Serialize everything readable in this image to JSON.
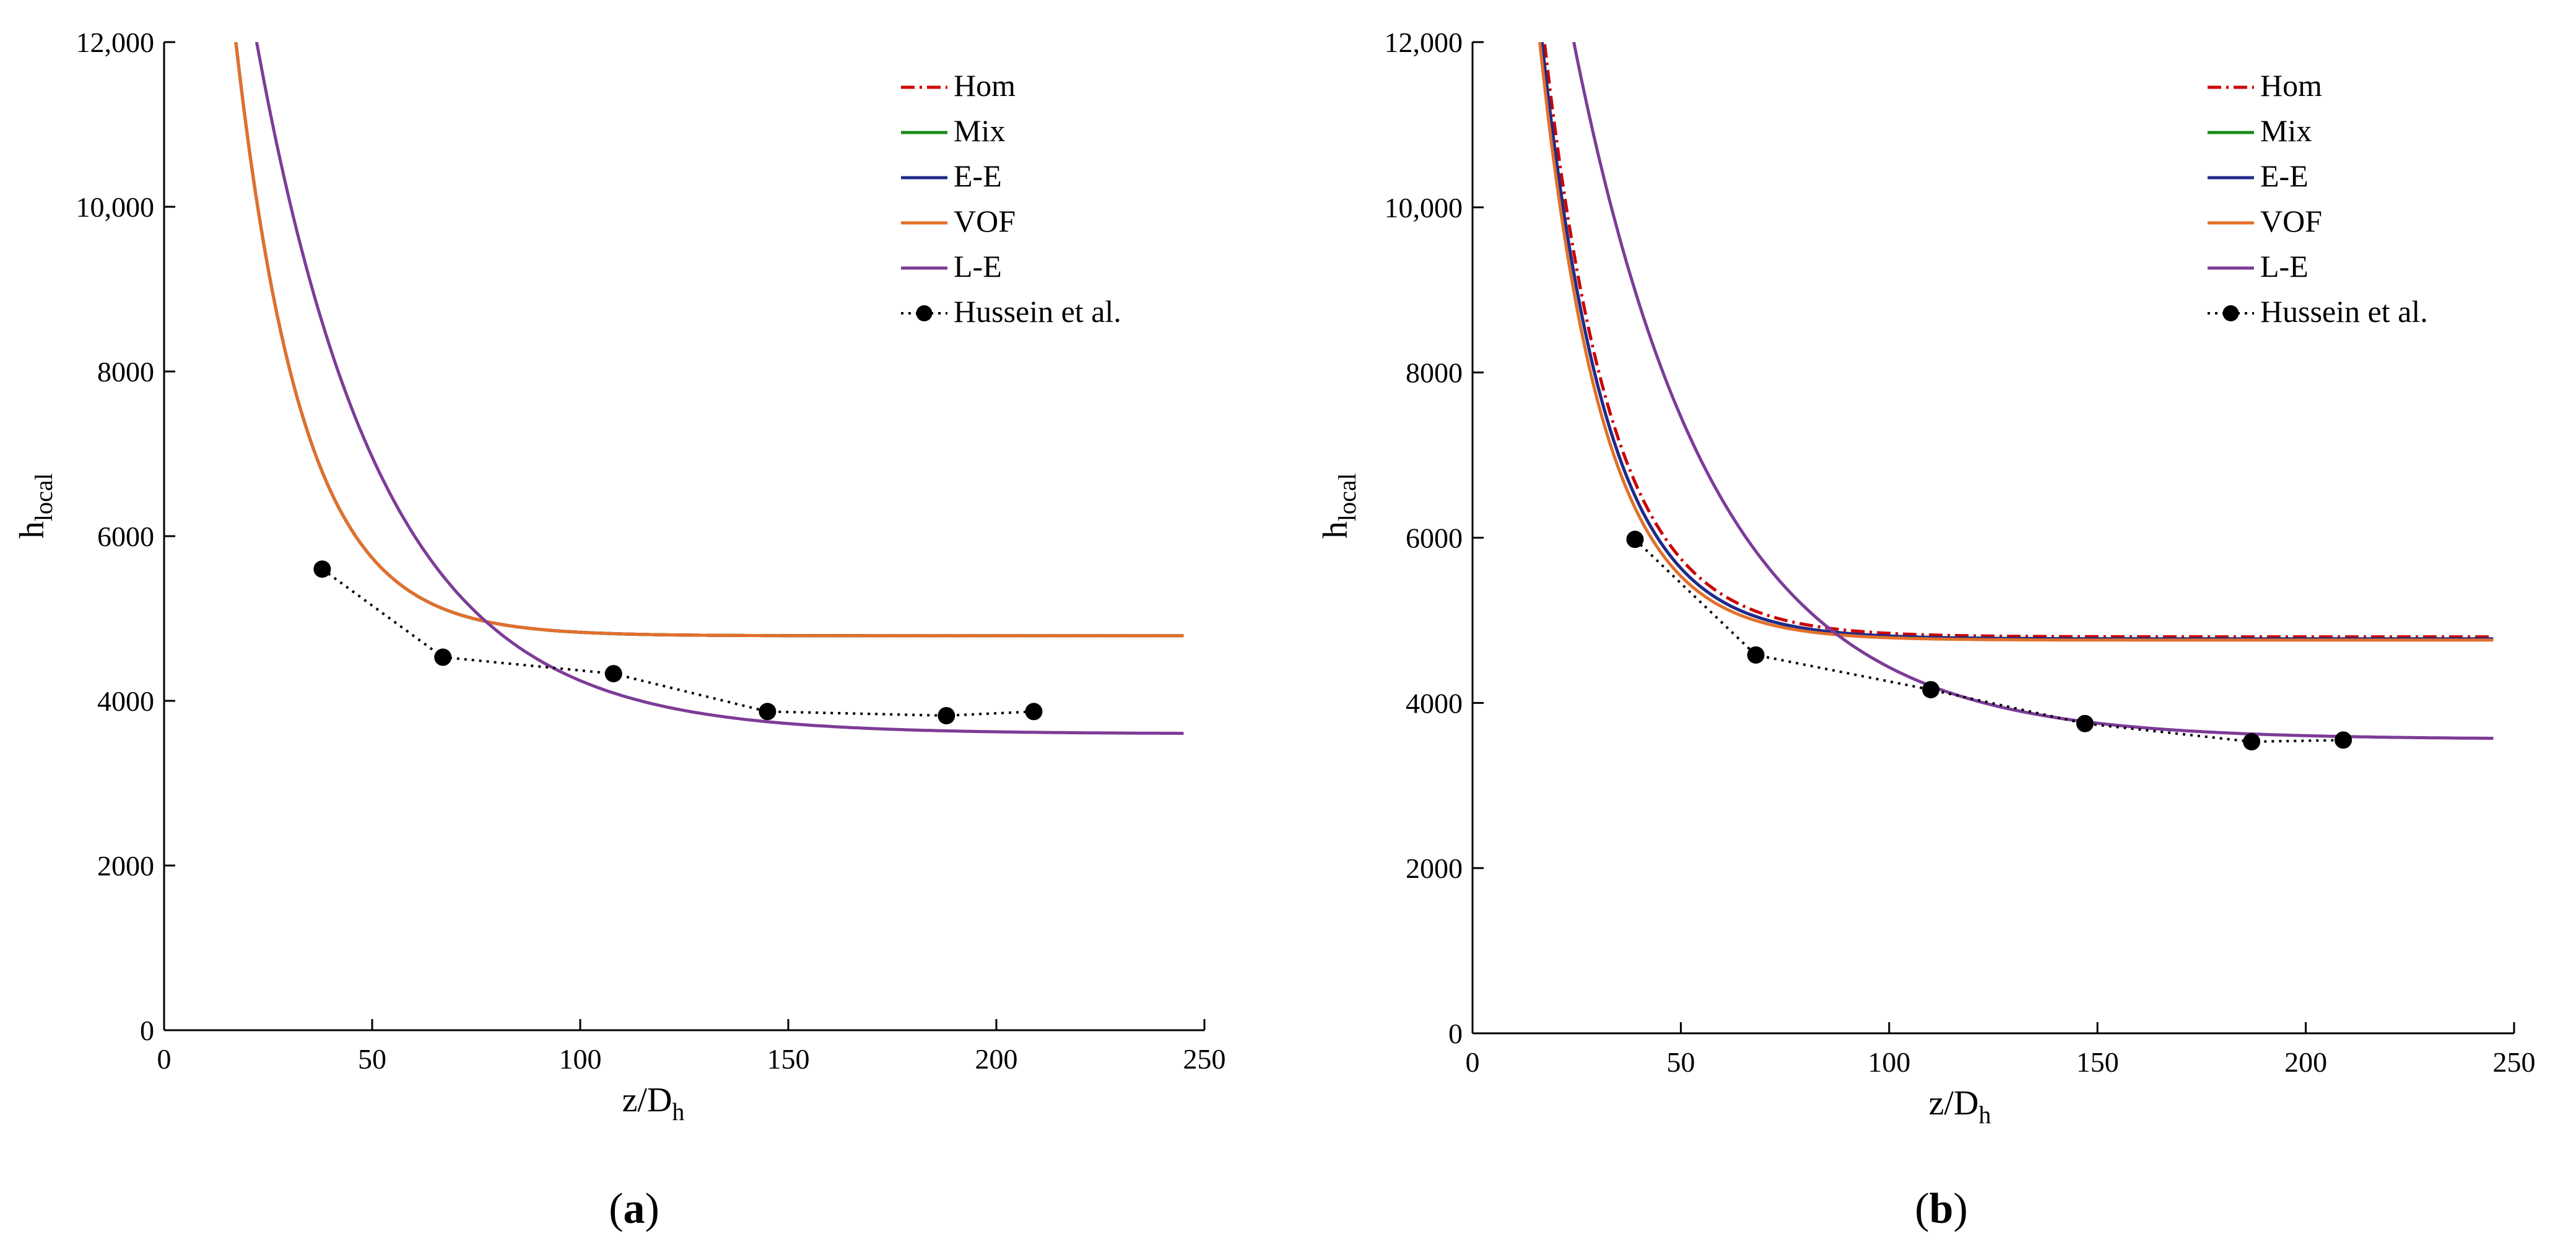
{
  "chart_data": [
    {
      "panel": "a",
      "type": "line",
      "xlabel": "z/D",
      "xlabel_sub": "h",
      "ylabel": "h",
      "ylabel_sub": "local",
      "xlim": [
        0,
        250
      ],
      "ylim": [
        0,
        12000
      ],
      "xticks": [
        0,
        50,
        100,
        150,
        200,
        250
      ],
      "xtick_labels": [
        "0",
        "50",
        "100",
        "150",
        "200",
        "250"
      ],
      "yticks": [
        0,
        2000,
        4000,
        6000,
        8000,
        10000,
        12000
      ],
      "ytick_labels": [
        "0",
        "2000",
        "4000",
        "6000",
        "8000",
        "10,000",
        "12,000"
      ],
      "legend_position": "top-right",
      "series": [
        {
          "name": "Hom",
          "color": "#cc0000",
          "style": "dashdot",
          "model": {
            "a": 4790,
            "b": 21000,
            "k": 0.062
          }
        },
        {
          "name": "Mix",
          "color": "#1a8a1a",
          "style": "solid",
          "model": {
            "a": 4790,
            "b": 21000,
            "k": 0.062
          }
        },
        {
          "name": "E-E",
          "color": "#1f2a8c",
          "style": "solid",
          "model": {
            "a": 4790,
            "b": 21000,
            "k": 0.062
          }
        },
        {
          "name": "VOF",
          "color": "#e3702a",
          "style": "solid",
          "model": {
            "a": 4790,
            "b": 21000,
            "k": 0.062
          }
        },
        {
          "name": "L-E",
          "color": "#7d3c98",
          "style": "solid",
          "model": {
            "a": 3600,
            "b": 17500,
            "k": 0.033
          }
        },
        {
          "name": "Hussein et al.",
          "color": "#000000",
          "style": "dotted-markers",
          "x": [
            38,
            67,
            108,
            145,
            188,
            209
          ],
          "y": [
            5600,
            4530,
            4330,
            3870,
            3820,
            3870
          ]
        }
      ],
      "panel_label": "a"
    },
    {
      "panel": "b",
      "type": "line",
      "xlabel": "z/D",
      "xlabel_sub": "h",
      "ylabel": "h",
      "ylabel_sub": "local",
      "xlim": [
        0,
        250
      ],
      "ylim": [
        0,
        12000
      ],
      "xticks": [
        0,
        50,
        100,
        150,
        200,
        250
      ],
      "xtick_labels": [
        "0",
        "50",
        "100",
        "150",
        "200",
        "250"
      ],
      "yticks": [
        0,
        2000,
        4000,
        6000,
        8000,
        10000,
        12000
      ],
      "ytick_labels": [
        "0",
        "2000",
        "4000",
        "6000",
        "8000",
        "10,000",
        "12,000"
      ],
      "legend_position": "top-right",
      "series": [
        {
          "name": "Hom",
          "color": "#cc0000",
          "style": "dashdot",
          "model": {
            "a": 4800,
            "b": 21000,
            "k": 0.062
          }
        },
        {
          "name": "Mix",
          "color": "#1a8a1a",
          "style": "solid",
          "model": {
            "a": 4775,
            "b": 21000,
            "k": 0.064
          }
        },
        {
          "name": "E-E",
          "color": "#1f2a8c",
          "style": "solid",
          "model": {
            "a": 4775,
            "b": 21000,
            "k": 0.064
          }
        },
        {
          "name": "VOF",
          "color": "#e3702a",
          "style": "solid",
          "model": {
            "a": 4760,
            "b": 21000,
            "k": 0.066
          }
        },
        {
          "name": "L-E",
          "color": "#7d3c98",
          "style": "solid",
          "model": {
            "a": 3560,
            "b": 17500,
            "k": 0.03
          }
        },
        {
          "name": "Hussein et al.",
          "color": "#000000",
          "style": "dotted-markers",
          "x": [
            39,
            68,
            110,
            147,
            187,
            209
          ],
          "y": [
            5980,
            4580,
            4160,
            3750,
            3530,
            3550
          ]
        }
      ],
      "panel_label": "b"
    }
  ]
}
